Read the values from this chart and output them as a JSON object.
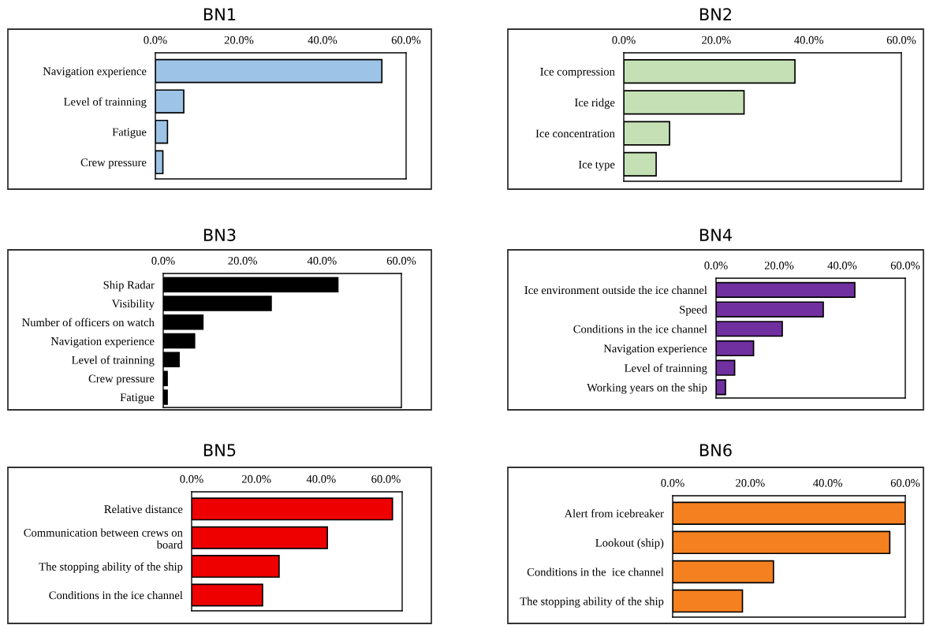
{
  "chart_data": [
    {
      "type": "bar",
      "orientation": "horizontal",
      "title": "BN1",
      "categories": [
        "Navigation experience",
        "Level of trainning",
        "Fatigue",
        "Crew pressure"
      ],
      "values": [
        54.2,
        6.8,
        2.9,
        1.8
      ],
      "color": "#9dc3e6",
      "xlim": [
        0,
        60
      ],
      "xticks": [
        {
          "value": 0,
          "label": "0.0%"
        },
        {
          "value": 20,
          "label": "20.0%"
        },
        {
          "value": 40,
          "label": "40.0%"
        },
        {
          "value": 60,
          "label": "60.0%"
        }
      ],
      "grid": false,
      "legend": false
    },
    {
      "type": "bar",
      "orientation": "horizontal",
      "title": "BN2",
      "categories": [
        "Ice compression",
        "Ice ridge",
        "Ice concentration",
        "Ice type"
      ],
      "values": [
        37.0,
        26.0,
        9.9,
        7.0
      ],
      "color": "#c5e0b4",
      "xlim": [
        0,
        60
      ],
      "xticks": [
        {
          "value": 0,
          "label": "0.0%"
        },
        {
          "value": 20,
          "label": "20.0%"
        },
        {
          "value": 40,
          "label": "40.0%"
        },
        {
          "value": 60,
          "label": "60.0%"
        }
      ],
      "grid": false,
      "legend": false
    },
    {
      "type": "bar",
      "orientation": "horizontal",
      "title": "BN3",
      "categories": [
        "Ship Radar",
        "Visibility",
        "Number of officers on watch",
        "Navigation experience",
        "Level of trainning",
        "Crew pressure",
        "Fatigue"
      ],
      "values": [
        44.0,
        27.2,
        10.0,
        7.9,
        4.0,
        1.0,
        1.0
      ],
      "color": "#000000",
      "xlim": [
        0,
        60
      ],
      "xticks": [
        {
          "value": 0,
          "label": "0.0%"
        },
        {
          "value": 20,
          "label": "20.0%"
        },
        {
          "value": 40,
          "label": "40.0%"
        },
        {
          "value": 60,
          "label": "60.0%"
        }
      ],
      "grid": false,
      "legend": false
    },
    {
      "type": "bar",
      "orientation": "horizontal",
      "title": "BN4",
      "categories": [
        "Ice environment outside the ice channel",
        "Speed",
        "Conditions in the ice channel",
        "Navigation experience",
        "Level of trainning",
        "Working years on the ship"
      ],
      "values": [
        44.0,
        34.0,
        21.0,
        11.9,
        5.9,
        3.0
      ],
      "color": "#7030a0",
      "xlim": [
        0,
        60
      ],
      "xticks": [
        {
          "value": 0,
          "label": "0.0%"
        },
        {
          "value": 20,
          "label": "20.0%"
        },
        {
          "value": 40,
          "label": "40.0%"
        },
        {
          "value": 60,
          "label": "60.0%"
        }
      ],
      "grid": false,
      "legend": false
    },
    {
      "type": "bar",
      "orientation": "horizontal",
      "title": "BN5",
      "categories": [
        "Relative distance",
        "Communication between crews on\nboard",
        "The stopping ability of the ship",
        "Conditions in the ice channel"
      ],
      "values": [
        62.0,
        41.9,
        27.0,
        21.9
      ],
      "color": "#ee0000",
      "xlim": [
        0,
        65
      ],
      "xticks": [
        {
          "value": 0,
          "label": "0.0%"
        },
        {
          "value": 20,
          "label": "20.0%"
        },
        {
          "value": 40,
          "label": "40.0%"
        },
        {
          "value": 60,
          "label": "60.0%"
        }
      ],
      "grid": false,
      "legend": false
    },
    {
      "type": "bar",
      "orientation": "horizontal",
      "title": "BN6",
      "categories": [
        "Alert from icebreaker",
        "Lookout (ship)",
        "Conditions in the  ice channel",
        "The stopping ability of the ship"
      ],
      "values": [
        60.0,
        56.0,
        26.0,
        18.0
      ],
      "color": "#f4801f",
      "xlim": [
        0,
        60
      ],
      "xticks": [
        {
          "value": 0,
          "label": "0.0%"
        },
        {
          "value": 20,
          "label": "20.0%"
        },
        {
          "value": 40,
          "label": "40.0%"
        },
        {
          "value": 60,
          "label": "60.0%"
        }
      ],
      "grid": false,
      "legend": false
    }
  ]
}
